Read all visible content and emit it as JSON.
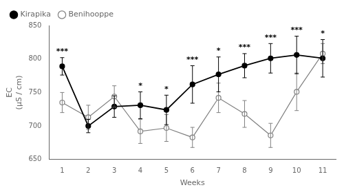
{
  "chart_data": {
    "type": "line",
    "xlabel": "Weeks",
    "ylabel": "EC\n(μS / cm)",
    "x": [
      1,
      2,
      3,
      4,
      5,
      6,
      7,
      8,
      9,
      10,
      11
    ],
    "series": [
      {
        "name": "Benihooppe",
        "color": "#808080",
        "marker": "open_circle",
        "values": [
          735,
          713,
          744,
          692,
          697,
          683,
          742,
          718,
          686,
          751,
          808
        ],
        "errors": [
          15,
          18,
          16,
          18,
          20,
          15,
          22,
          20,
          18,
          28,
          15
        ]
      },
      {
        "name": "Kirapika",
        "color": "#000000",
        "marker": "circle",
        "values": [
          789,
          700,
          729,
          731,
          724,
          762,
          777,
          790,
          801,
          806,
          801
        ],
        "errors": [
          13,
          10,
          16,
          20,
          22,
          28,
          26,
          18,
          22,
          28,
          28
        ]
      }
    ],
    "annotations": [
      {
        "x": 1,
        "text": "***"
      },
      {
        "x": 4,
        "text": "*"
      },
      {
        "x": 5,
        "text": "*"
      },
      {
        "x": 6,
        "text": "***"
      },
      {
        "x": 7,
        "text": "*"
      },
      {
        "x": 8,
        "text": "***"
      },
      {
        "x": 9,
        "text": "***"
      },
      {
        "x": 10,
        "text": "***"
      },
      {
        "x": 11,
        "text": "*"
      }
    ],
    "xlim": [
      0.5,
      11.5
    ],
    "xticks": [
      1,
      2,
      3,
      4,
      5,
      6,
      7,
      8,
      9,
      10,
      11
    ],
    "ylim": [
      650,
      850
    ],
    "yticks": [
      650,
      700,
      750,
      800,
      850
    ],
    "grid": false,
    "legend": "upper left"
  }
}
